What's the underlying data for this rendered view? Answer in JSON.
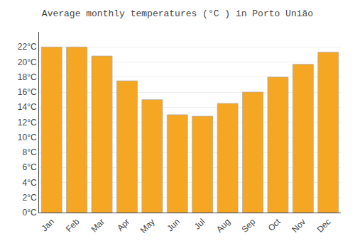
{
  "chart_data": {
    "type": "bar",
    "title": "Average monthly temperatures (°C ) in Porto União",
    "categories": [
      "Jan",
      "Feb",
      "Mar",
      "Apr",
      "May",
      "Jun",
      "Jul",
      "Aug",
      "Sep",
      "Oct",
      "Nov",
      "Dec"
    ],
    "values": [
      22.0,
      22.0,
      20.8,
      17.5,
      15.0,
      13.0,
      12.8,
      14.5,
      16.0,
      18.0,
      19.7,
      21.3
    ],
    "color": "#F5A623",
    "ylim": [
      0,
      24
    ],
    "yticks": [
      {
        "value": 0,
        "label": "0°C"
      },
      {
        "value": 2,
        "label": "2°C"
      },
      {
        "value": 4,
        "label": "4°C"
      },
      {
        "value": 6,
        "label": "6°C"
      },
      {
        "value": 8,
        "label": "8°C"
      },
      {
        "value": 10,
        "label": "10°C"
      },
      {
        "value": 12,
        "label": "12°C"
      },
      {
        "value": 14,
        "label": "14°C"
      },
      {
        "value": 16,
        "label": "16°C"
      },
      {
        "value": 18,
        "label": "18°C"
      },
      {
        "value": 20,
        "label": "20°C"
      },
      {
        "value": 22,
        "label": "22°C"
      }
    ],
    "grid": true
  }
}
